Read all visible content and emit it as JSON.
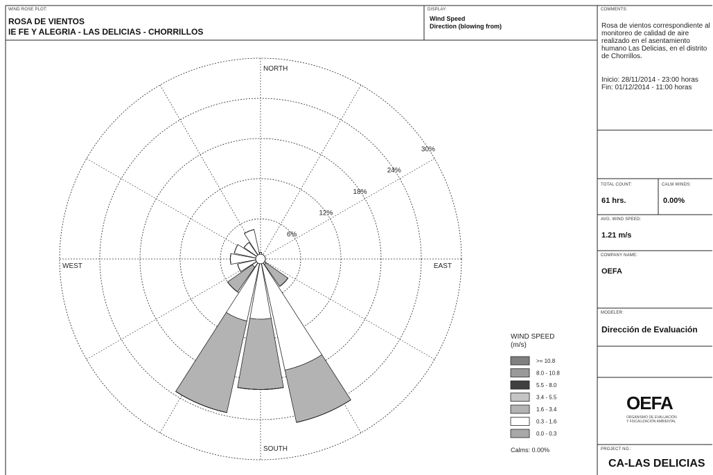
{
  "chart_data": {
    "type": "windrose",
    "plot_label": "WIND ROSE PLOT:",
    "title": "ROSA DE VIENTOS",
    "subtitle": "IE FE Y ALEGRIA - LAS DELICIAS - CHORRILLOS",
    "display_label": "DISPLAY:",
    "display": [
      "Wind Speed",
      "Direction (blowing from)"
    ],
    "categories": [
      "NORTH",
      null,
      null,
      null,
      "EAST",
      null,
      null,
      null,
      "SOUTH",
      null,
      null,
      null,
      "WEST",
      null,
      null,
      null
    ],
    "rlim": [
      0,
      30
    ],
    "rticks": [
      {
        "value": 6,
        "label": "6%"
      },
      {
        "value": 12,
        "label": "12%"
      },
      {
        "value": 18,
        "label": "18%"
      },
      {
        "value": 24,
        "label": "24%"
      },
      {
        "value": 30,
        "label": "30%"
      }
    ],
    "legend_title": [
      "WIND SPEED",
      "(m/s)"
    ],
    "calms": "Calms: 0.00%",
    "series": [
      {
        "name": ">= 10.8",
        "color": "#808080",
        "values": [
          0,
          0,
          0,
          0,
          0,
          0,
          0,
          0,
          0,
          0,
          0,
          0,
          0,
          0,
          0,
          0
        ]
      },
      {
        "name": "8.0 - 10.8",
        "color": "#9a9a9a",
        "values": [
          0,
          0,
          0,
          0,
          0,
          0,
          0,
          0,
          0,
          0,
          0,
          0,
          0,
          0,
          0,
          0
        ]
      },
      {
        "name": "5.5 - 8.0",
        "color": "#404040",
        "values": [
          0,
          0,
          0,
          0,
          0,
          0,
          0,
          0,
          0,
          0,
          0,
          0,
          0,
          0,
          0,
          0
        ]
      },
      {
        "name": "3.4 - 5.5",
        "color": "#c4c4c4",
        "values": [
          0,
          0,
          0,
          0,
          0,
          0,
          0,
          0,
          0,
          0,
          0,
          0,
          0,
          0,
          0,
          0
        ]
      },
      {
        "name": "1.6 - 3.4",
        "color": "#b3b3b3",
        "values": [
          0,
          0,
          0,
          0,
          0,
          0,
          4,
          8,
          10.5,
          14,
          4.5,
          0,
          0,
          0,
          0,
          0
        ]
      },
      {
        "name": "0.3 - 1.6",
        "color": "#ffffff",
        "values": [
          1,
          0.5,
          0,
          0,
          0,
          0,
          1,
          17,
          9,
          9.5,
          1.5,
          3.5,
          4.5,
          4,
          3,
          4.5
        ]
      },
      {
        "name": "0.0 - 0.3",
        "color": "#a8a8a8",
        "values": [
          0,
          0,
          0,
          0,
          0,
          0,
          0,
          0,
          0,
          0,
          0,
          0,
          0,
          0,
          0,
          0
        ]
      }
    ]
  },
  "panel": {
    "comments_label": "COMMENTS:",
    "comments": [
      "Rosa de vientos correspondiente al monitoreo de calidad de aire realizado en el asentamiento humano Las Delicias, en el distrito de Chorrillos.",
      "Inicio: 28/11/2014 - 23:00 horas",
      "Fin: 01/12/2014 - 11:00 horas"
    ],
    "total_count_label": "TOTAL COUNT:",
    "total_count": "61 hrs.",
    "calm_label": "CALM WINDS:",
    "calm": "0.00%",
    "avg_label": "AVG. WIND SPEED:",
    "avg": "1.21 m/s",
    "company_label": "COMPANY NAME:",
    "company": "OEFA",
    "modeler_label": "MODELER:",
    "modeler": "Dirección de Evaluación",
    "logo": "OEFA",
    "logo_caption": [
      "ORGANISMO DE EVALUACIÓN",
      "Y FISCALIZACIÓN AMBIENTAL"
    ],
    "project_label": "PROJECT NO.:",
    "project": "CA-LAS DELICIAS"
  }
}
